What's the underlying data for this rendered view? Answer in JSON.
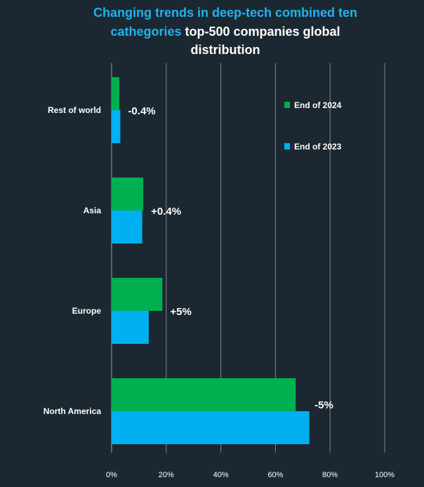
{
  "chart_data": {
    "type": "bar",
    "orientation": "horizontal",
    "title_line1": "Changing trends in deep-tech combined ten",
    "title_line2_highlight": "cathegories",
    "title_line2_rest": " top-500 companies global",
    "title_line3": "distribution",
    "categories": [
      "Rest of world",
      "Asia",
      "Europe",
      "North America"
    ],
    "series": [
      {
        "name": "End of 2024",
        "color": "#00b050",
        "values": [
          2.8,
          11.6,
          18.6,
          67.4
        ]
      },
      {
        "name": "End of 2023",
        "color": "#00b0f0",
        "values": [
          3.2,
          11.2,
          13.6,
          72.4
        ]
      }
    ],
    "changes": [
      "-0.4%",
      "+0.4%",
      "+5%",
      "-5%"
    ],
    "xlim": [
      0,
      100
    ],
    "xticks": [
      0,
      20,
      40,
      60,
      80,
      100
    ],
    "xtick_labels": [
      "0%",
      "20%",
      "40%",
      "60%",
      "80%",
      "100%"
    ],
    "grid": true,
    "legend_position": "top-right"
  }
}
